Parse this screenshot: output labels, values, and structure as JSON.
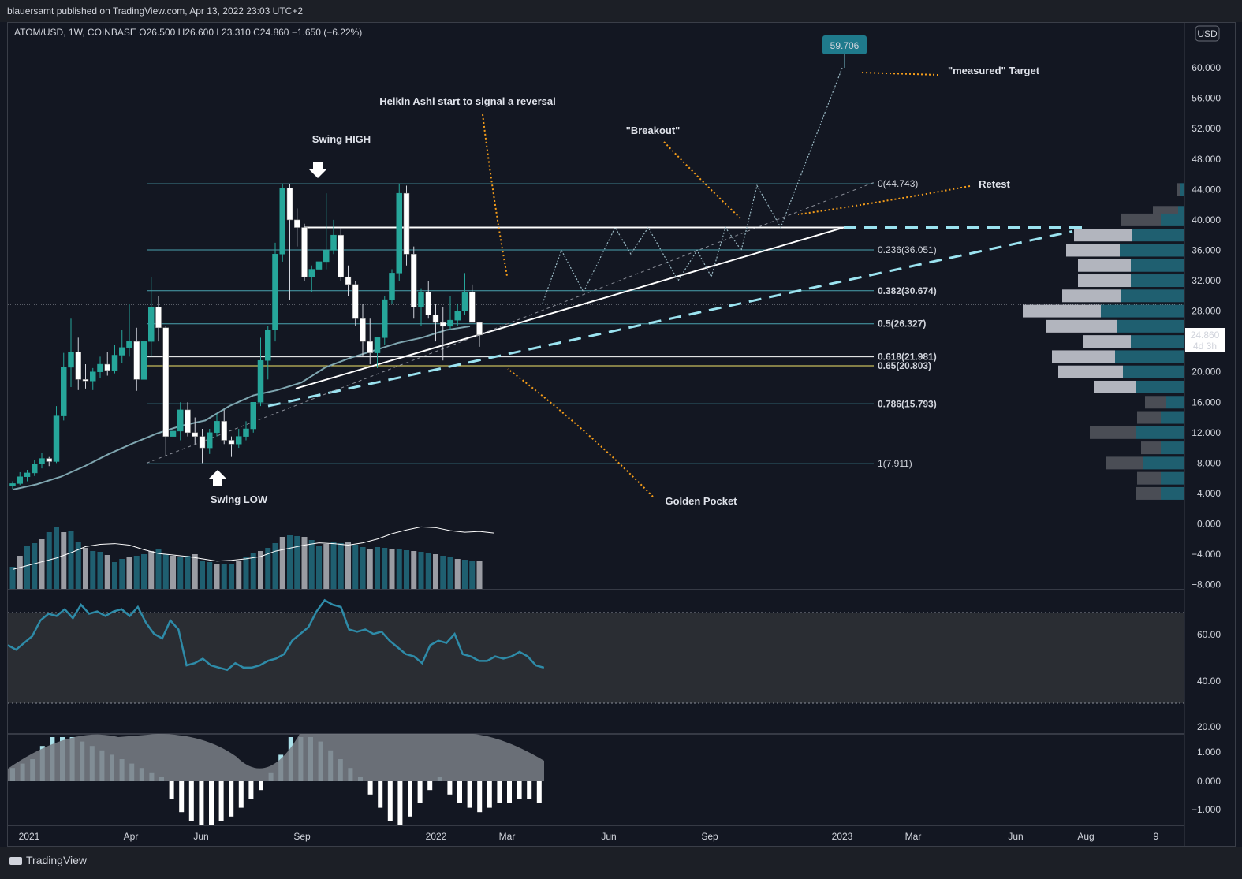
{
  "header": {
    "published": "blauersamt published on TradingView.com, Apr 13, 2022 23:03 UTC+2"
  },
  "legend": {
    "symbol": "ATOM/USD, 1W, COINBASE",
    "open": "O26.500",
    "high": "H26.600",
    "low": "L23.310",
    "close": "C24.860",
    "change": "−1.650 (−6.22%)"
  },
  "footer": {
    "brand": "TradingView"
  },
  "price_axis": {
    "currency": "USD",
    "labels": [
      "60.000",
      "56.000",
      "52.000",
      "48.000",
      "44.000",
      "40.000",
      "36.000",
      "32.000",
      "28.000",
      "24.000",
      "20.000",
      "16.000",
      "12.000",
      "8.000",
      "4.000",
      "0.000",
      "−4.000",
      "−8.000"
    ],
    "last_price": "24.860",
    "countdown": "4d 3h"
  },
  "rsi_axis": {
    "labels": [
      "60.00",
      "40.00",
      "20.00"
    ]
  },
  "osc_axis": {
    "labels": [
      "1.000",
      "0.000",
      "−1.000"
    ]
  },
  "time_axis": {
    "labels": [
      "2021",
      "Apr",
      "Jun",
      "Sep",
      "2022",
      "Mar",
      "Jun",
      "Sep",
      "2023",
      "Mar",
      "Jun",
      "Aug",
      "9"
    ]
  },
  "colors": {
    "bg": "#131722",
    "teal": "#26a69a",
    "blue_teal": "#2e8b9a",
    "light_blue": "#9be3f0",
    "orange": "#f59d1a",
    "yellow": "#f3e46b",
    "fib": "#4ba3b0"
  },
  "chart_data": {
    "type": "candlestick",
    "series_name": "ATOM/USD",
    "candles": [
      {
        "d": "2021-01-04",
        "o": 5.0,
        "h": 5.6,
        "l": 4.6,
        "c": 5.3
      },
      {
        "d": "2021-01-11",
        "o": 5.3,
        "h": 6.8,
        "l": 5.1,
        "c": 6.2
      },
      {
        "d": "2021-01-18",
        "o": 6.2,
        "h": 7.1,
        "l": 5.6,
        "c": 6.7
      },
      {
        "d": "2021-01-25",
        "o": 6.7,
        "h": 8.4,
        "l": 6.3,
        "c": 7.9
      },
      {
        "d": "2021-02-01",
        "o": 7.9,
        "h": 9.3,
        "l": 7.3,
        "c": 8.6
      },
      {
        "d": "2021-02-08",
        "o": 8.6,
        "h": 8.8,
        "l": 7.6,
        "c": 8.2
      },
      {
        "d": "2021-02-15",
        "o": 8.2,
        "h": 15.5,
        "l": 8.0,
        "c": 14.2
      },
      {
        "d": "2021-02-22",
        "o": 14.2,
        "h": 22.5,
        "l": 13.6,
        "c": 20.6
      },
      {
        "d": "2021-03-01",
        "o": 20.6,
        "h": 27.0,
        "l": 18.0,
        "c": 22.6
      },
      {
        "d": "2021-03-08",
        "o": 22.6,
        "h": 24.5,
        "l": 17.6,
        "c": 19.0
      },
      {
        "d": "2021-03-15",
        "o": 19.0,
        "h": 21.0,
        "l": 17.8,
        "c": 18.8
      },
      {
        "d": "2021-03-22",
        "o": 18.8,
        "h": 20.5,
        "l": 17.6,
        "c": 20.0
      },
      {
        "d": "2021-03-29",
        "o": 20.0,
        "h": 22.0,
        "l": 19.2,
        "c": 21.0
      },
      {
        "d": "2021-04-05",
        "o": 21.0,
        "h": 22.6,
        "l": 19.5,
        "c": 20.2
      },
      {
        "d": "2021-04-12",
        "o": 20.2,
        "h": 23.5,
        "l": 19.8,
        "c": 22.2
      },
      {
        "d": "2021-04-19",
        "o": 22.2,
        "h": 25.5,
        "l": 21.2,
        "c": 23.2
      },
      {
        "d": "2021-04-26",
        "o": 23.2,
        "h": 29.0,
        "l": 22.0,
        "c": 24.0
      },
      {
        "d": "2021-05-03",
        "o": 24.0,
        "h": 25.8,
        "l": 17.5,
        "c": 19.0
      },
      {
        "d": "2021-05-10",
        "o": 19.0,
        "h": 25.0,
        "l": 16.0,
        "c": 24.0
      },
      {
        "d": "2021-05-17",
        "o": 24.0,
        "h": 32.5,
        "l": 22.0,
        "c": 28.5
      },
      {
        "d": "2021-05-24",
        "o": 28.5,
        "h": 30.0,
        "l": 24.0,
        "c": 25.8
      },
      {
        "d": "2021-05-31",
        "o": 25.8,
        "h": 26.0,
        "l": 9.0,
        "c": 11.5
      },
      {
        "d": "2021-06-07",
        "o": 11.5,
        "h": 15.5,
        "l": 10.0,
        "c": 12.2
      },
      {
        "d": "2021-06-14",
        "o": 12.2,
        "h": 16.0,
        "l": 11.0,
        "c": 15.0
      },
      {
        "d": "2021-06-21",
        "o": 15.0,
        "h": 16.0,
        "l": 11.5,
        "c": 12.0
      },
      {
        "d": "2021-06-28",
        "o": 12.0,
        "h": 14.0,
        "l": 10.5,
        "c": 11.5
      },
      {
        "d": "2021-07-05",
        "o": 11.5,
        "h": 12.5,
        "l": 8.0,
        "c": 10.0
      },
      {
        "d": "2021-07-12",
        "o": 10.0,
        "h": 12.5,
        "l": 9.2,
        "c": 12.0
      },
      {
        "d": "2021-07-19",
        "o": 12.0,
        "h": 14.5,
        "l": 11.5,
        "c": 13.5
      },
      {
        "d": "2021-07-26",
        "o": 13.5,
        "h": 15.0,
        "l": 10.5,
        "c": 11.0
      },
      {
        "d": "2021-08-02",
        "o": 11.0,
        "h": 11.5,
        "l": 8.8,
        "c": 10.5
      },
      {
        "d": "2021-08-09",
        "o": 10.5,
        "h": 12.5,
        "l": 10.0,
        "c": 11.5
      },
      {
        "d": "2021-08-16",
        "o": 11.5,
        "h": 13.5,
        "l": 11.0,
        "c": 12.5
      },
      {
        "d": "2021-08-23",
        "o": 12.5,
        "h": 16.0,
        "l": 12.0,
        "c": 16.0
      },
      {
        "d": "2021-08-30",
        "o": 16.0,
        "h": 24.5,
        "l": 15.5,
        "c": 21.5
      },
      {
        "d": "2021-09-06",
        "o": 21.5,
        "h": 26.0,
        "l": 19.0,
        "c": 25.5
      },
      {
        "d": "2021-09-13",
        "o": 25.5,
        "h": 37.0,
        "l": 24.0,
        "c": 35.5
      },
      {
        "d": "2021-09-20",
        "o": 35.5,
        "h": 44.8,
        "l": 34.5,
        "c": 44.2
      },
      {
        "d": "2021-09-27",
        "o": 44.2,
        "h": 44.7,
        "l": 29.5,
        "c": 40.0
      },
      {
        "d": "2021-10-04",
        "o": 40.0,
        "h": 41.5,
        "l": 36.5,
        "c": 39.0
      },
      {
        "d": "2021-10-11",
        "o": 39.0,
        "h": 39.5,
        "l": 32.0,
        "c": 32.5
      },
      {
        "d": "2021-10-18",
        "o": 32.5,
        "h": 34.0,
        "l": 30.5,
        "c": 33.5
      },
      {
        "d": "2021-10-25",
        "o": 33.5,
        "h": 36.0,
        "l": 31.5,
        "c": 34.5
      },
      {
        "d": "2021-11-01",
        "o": 34.5,
        "h": 43.5,
        "l": 33.5,
        "c": 36.0
      },
      {
        "d": "2021-11-08",
        "o": 36.0,
        "h": 40.0,
        "l": 35.5,
        "c": 38.0
      },
      {
        "d": "2021-11-15",
        "o": 38.0,
        "h": 39.0,
        "l": 32.0,
        "c": 32.5
      },
      {
        "d": "2021-11-22",
        "o": 32.5,
        "h": 34.0,
        "l": 30.0,
        "c": 31.5
      },
      {
        "d": "2021-11-29",
        "o": 31.5,
        "h": 32.0,
        "l": 26.0,
        "c": 27.0
      },
      {
        "d": "2021-12-06",
        "o": 27.0,
        "h": 29.0,
        "l": 22.0,
        "c": 24.0
      },
      {
        "d": "2021-12-13",
        "o": 24.0,
        "h": 27.0,
        "l": 21.0,
        "c": 22.5
      },
      {
        "d": "2021-12-20",
        "o": 22.5,
        "h": 24.5,
        "l": 20.5,
        "c": 24.5
      },
      {
        "d": "2021-12-27",
        "o": 24.5,
        "h": 30.0,
        "l": 23.5,
        "c": 29.5
      },
      {
        "d": "2022-01-03",
        "o": 29.5,
        "h": 33.5,
        "l": 29.0,
        "c": 33.0
      },
      {
        "d": "2022-01-10",
        "o": 33.0,
        "h": 44.8,
        "l": 32.0,
        "c": 43.5
      },
      {
        "d": "2022-01-17",
        "o": 43.5,
        "h": 44.5,
        "l": 34.0,
        "c": 35.5
      },
      {
        "d": "2022-01-24",
        "o": 35.5,
        "h": 36.5,
        "l": 27.0,
        "c": 28.5
      },
      {
        "d": "2022-01-31",
        "o": 28.5,
        "h": 31.0,
        "l": 26.0,
        "c": 30.5
      },
      {
        "d": "2022-02-07",
        "o": 30.5,
        "h": 32.0,
        "l": 27.0,
        "c": 27.5
      },
      {
        "d": "2022-02-14",
        "o": 27.5,
        "h": 29.0,
        "l": 24.0,
        "c": 26.5
      },
      {
        "d": "2022-02-21",
        "o": 26.5,
        "h": 28.5,
        "l": 21.5,
        "c": 26.0
      },
      {
        "d": "2022-02-28",
        "o": 26.0,
        "h": 30.0,
        "l": 25.5,
        "c": 26.8
      },
      {
        "d": "2022-03-07",
        "o": 26.8,
        "h": 29.0,
        "l": 26.0,
        "c": 28.0
      },
      {
        "d": "2022-03-14",
        "o": 28.0,
        "h": 33.0,
        "l": 27.5,
        "c": 30.5
      },
      {
        "d": "2022-03-21",
        "o": 30.5,
        "h": 31.5,
        "l": 26.5,
        "c": 26.5
      },
      {
        "d": "2022-03-28",
        "o": 26.5,
        "h": 26.6,
        "l": 23.3,
        "c": 24.86
      }
    ],
    "ma_line": [
      4.5,
      5.2,
      6.2,
      7.6,
      9.2,
      10.6,
      11.9,
      12.9,
      13.6,
      15.5,
      16.9,
      17.6,
      18.6,
      20.6,
      21.8,
      22.8,
      23.8,
      24.5,
      25.5,
      26.0
    ],
    "volume": [
      28,
      42,
      54,
      58,
      63,
      72,
      78,
      72,
      74,
      60,
      52,
      48,
      47,
      43,
      34,
      38,
      40,
      42,
      44,
      48,
      50,
      44,
      42,
      40,
      42,
      44,
      36,
      34,
      32,
      31,
      31,
      35,
      40,
      45,
      48,
      52,
      58,
      66,
      68,
      67,
      66,
      62,
      55,
      57,
      59,
      58,
      60,
      56,
      53,
      51,
      53,
      52,
      51,
      50,
      49,
      48,
      47,
      46,
      44,
      42,
      40,
      38,
      37,
      36,
      35
    ],
    "volume_ma": [
      -6.0,
      -5.5,
      -5.0,
      -4.5,
      -3.8,
      -3.0,
      -2.7,
      -2.6,
      -2.8,
      -3.4,
      -3.9,
      -4.1,
      -4.3,
      -4.6,
      -4.9,
      -4.8,
      -4.6,
      -4.3,
      -3.6,
      -3.2,
      -2.8,
      -2.5,
      -2.6,
      -2.8,
      -2.5,
      -2.0,
      -1.3,
      -0.8,
      -0.4,
      -0.5,
      -0.9,
      -1.1,
      -1.0,
      -1.2
    ],
    "rsi": [
      56,
      54,
      57,
      60,
      67,
      70,
      69,
      72,
      68,
      74,
      70,
      71,
      69,
      71,
      72,
      69,
      73,
      66,
      61,
      59,
      67,
      63,
      47,
      48,
      50,
      47,
      46,
      45,
      48,
      46,
      46,
      47,
      49,
      50,
      52,
      58,
      61,
      64,
      71,
      76,
      74,
      73,
      63,
      62,
      63,
      61,
      62,
      58,
      55,
      52,
      51,
      48,
      56,
      58,
      57,
      61,
      52,
      51,
      49,
      49,
      51,
      50,
      51,
      53,
      51,
      47,
      46
    ],
    "fib_levels": [
      {
        "label": "0(44.743)",
        "value": 44.743
      },
      {
        "label": "0.236(36.051)",
        "value": 36.051
      },
      {
        "label": "0.382(30.674)",
        "value": 30.674
      },
      {
        "label": "0.5(26.327)",
        "value": 26.327
      },
      {
        "label": "0.618(21.981)",
        "value": 21.981
      },
      {
        "label": "0.65(20.803)",
        "value": 20.803
      },
      {
        "label": "0.786(15.793)",
        "value": 15.793
      },
      {
        "label": "1(7.911)",
        "value": 7.911
      }
    ],
    "target": {
      "label": "59.706",
      "value": 59.706
    },
    "annotations": {
      "swing_high": "Swing HIGH",
      "swing_low": "Swing LOW",
      "heikin": "Heikin Ashi start to signal a reversal",
      "breakout": "\"Breakout\"",
      "retest": "Retest",
      "measured": "\"measured\" Target",
      "golden_pocket": "Golden Pocket"
    },
    "ylim": [
      -8,
      62
    ],
    "rsi_range": [
      20,
      72
    ],
    "osc_range": [
      -1.5,
      1.5
    ]
  }
}
